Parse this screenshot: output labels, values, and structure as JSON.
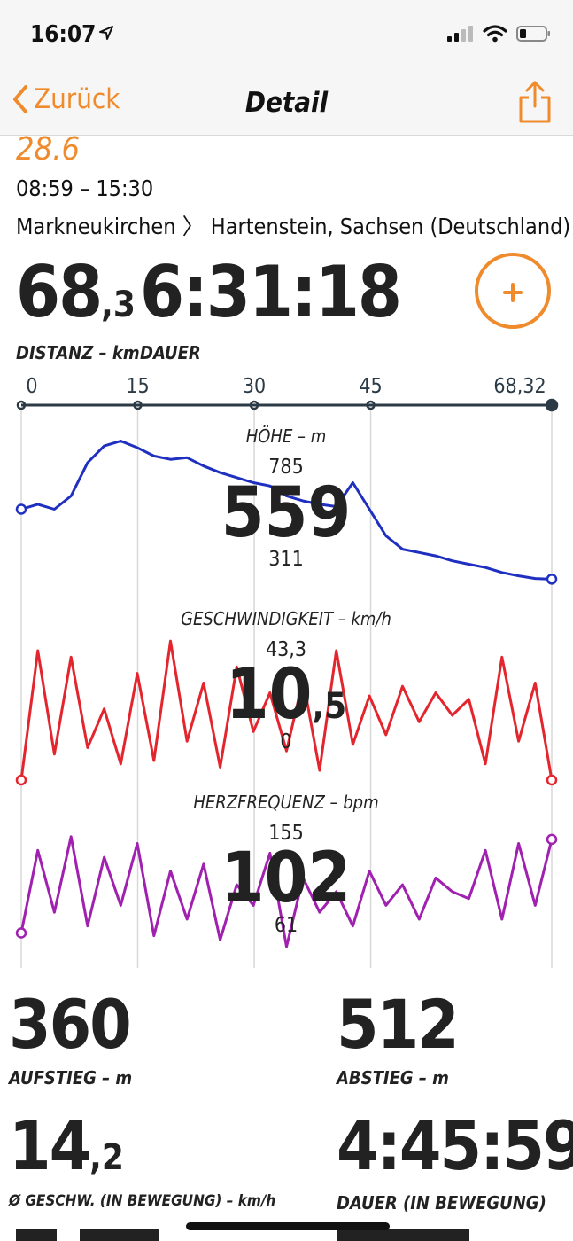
{
  "status_bar": {
    "time": "16:07"
  },
  "nav": {
    "back_label": "Zurück",
    "title": "Detail"
  },
  "header": {
    "partial_value": "28.6",
    "time_range": "08:59 – 15:30",
    "route": "Markneukirchen 〉 Hartenstein, Sachsen (Deutschland)"
  },
  "summary": {
    "distance_int": "68",
    "distance_dec": ",3",
    "distance_label": "DISTANZ – km",
    "duration": "6:31:18",
    "duration_label": "DAUER"
  },
  "axis": {
    "ticks": [
      "0",
      "15",
      "30",
      "45",
      "68,32"
    ],
    "tick_km": [
      0,
      15,
      30,
      45,
      68.32
    ]
  },
  "colors": {
    "accent": "#ef8b2c",
    "elevation": "#1f2fbf",
    "speed": "#e3262e",
    "heart": "#a020b0",
    "axis": "#2b3a45"
  },
  "charts": {
    "elevation": {
      "title": "HÖHE – m",
      "max": "785",
      "current": "559",
      "min": "311"
    },
    "speed": {
      "title": "GESCHWINDIGKEIT – km/h",
      "max": "43,3",
      "current_int": "10",
      "current_dec": ",5",
      "min": "0"
    },
    "heart": {
      "title": "HERZFREQUENZ – bpm",
      "max": "155",
      "current": "102",
      "min": "61"
    }
  },
  "chart_data": [
    {
      "type": "line",
      "title": "HÖHE – m",
      "x_unit": "km",
      "ylim": [
        311,
        785
      ],
      "series": [
        {
          "values": [
            560,
            575,
            560,
            600,
            700,
            750,
            765,
            745,
            720,
            710,
            715,
            690,
            670,
            655,
            640,
            630,
            600,
            585,
            575,
            568,
            640,
            560,
            480,
            440,
            430,
            420,
            405,
            395,
            385,
            370,
            360,
            352,
            350
          ]
        }
      ]
    },
    {
      "type": "line",
      "title": "GESCHWINDIGKEIT – km/h",
      "x_unit": "km",
      "ylim": [
        0,
        43.3
      ],
      "series": [
        {
          "values": [
            0,
            40,
            8,
            38,
            10,
            22,
            5,
            33,
            6,
            43,
            12,
            30,
            4,
            35,
            15,
            27,
            9,
            31,
            3,
            40,
            11,
            26,
            14,
            29,
            18,
            27,
            20,
            25,
            5,
            38,
            12,
            30,
            0
          ]
        }
      ]
    },
    {
      "type": "line",
      "title": "HERZFREQUENZ – bpm",
      "x_unit": "km",
      "ylim": [
        61,
        155
      ],
      "series": [
        {
          "values": [
            80,
            140,
            95,
            150,
            85,
            135,
            100,
            145,
            78,
            125,
            90,
            130,
            75,
            115,
            100,
            138,
            70,
            120,
            95,
            110,
            85,
            125,
            100,
            115,
            90,
            120,
            110,
            105,
            140,
            90,
            145,
            100,
            148
          ]
        }
      ]
    }
  ],
  "stats": {
    "ascent": {
      "value": "360",
      "label": "AUFSTIEG – m"
    },
    "descent": {
      "value": "512",
      "label": "ABSTIEG – m"
    },
    "avg_speed": {
      "int": "14",
      "dec": ",2",
      "label": "Ø GESCHW. (IN BEWEGUNG) – km/h"
    },
    "moving_duration": {
      "value": "4:45:59",
      "label": "DAUER (IN BEWEGUNG)"
    }
  }
}
